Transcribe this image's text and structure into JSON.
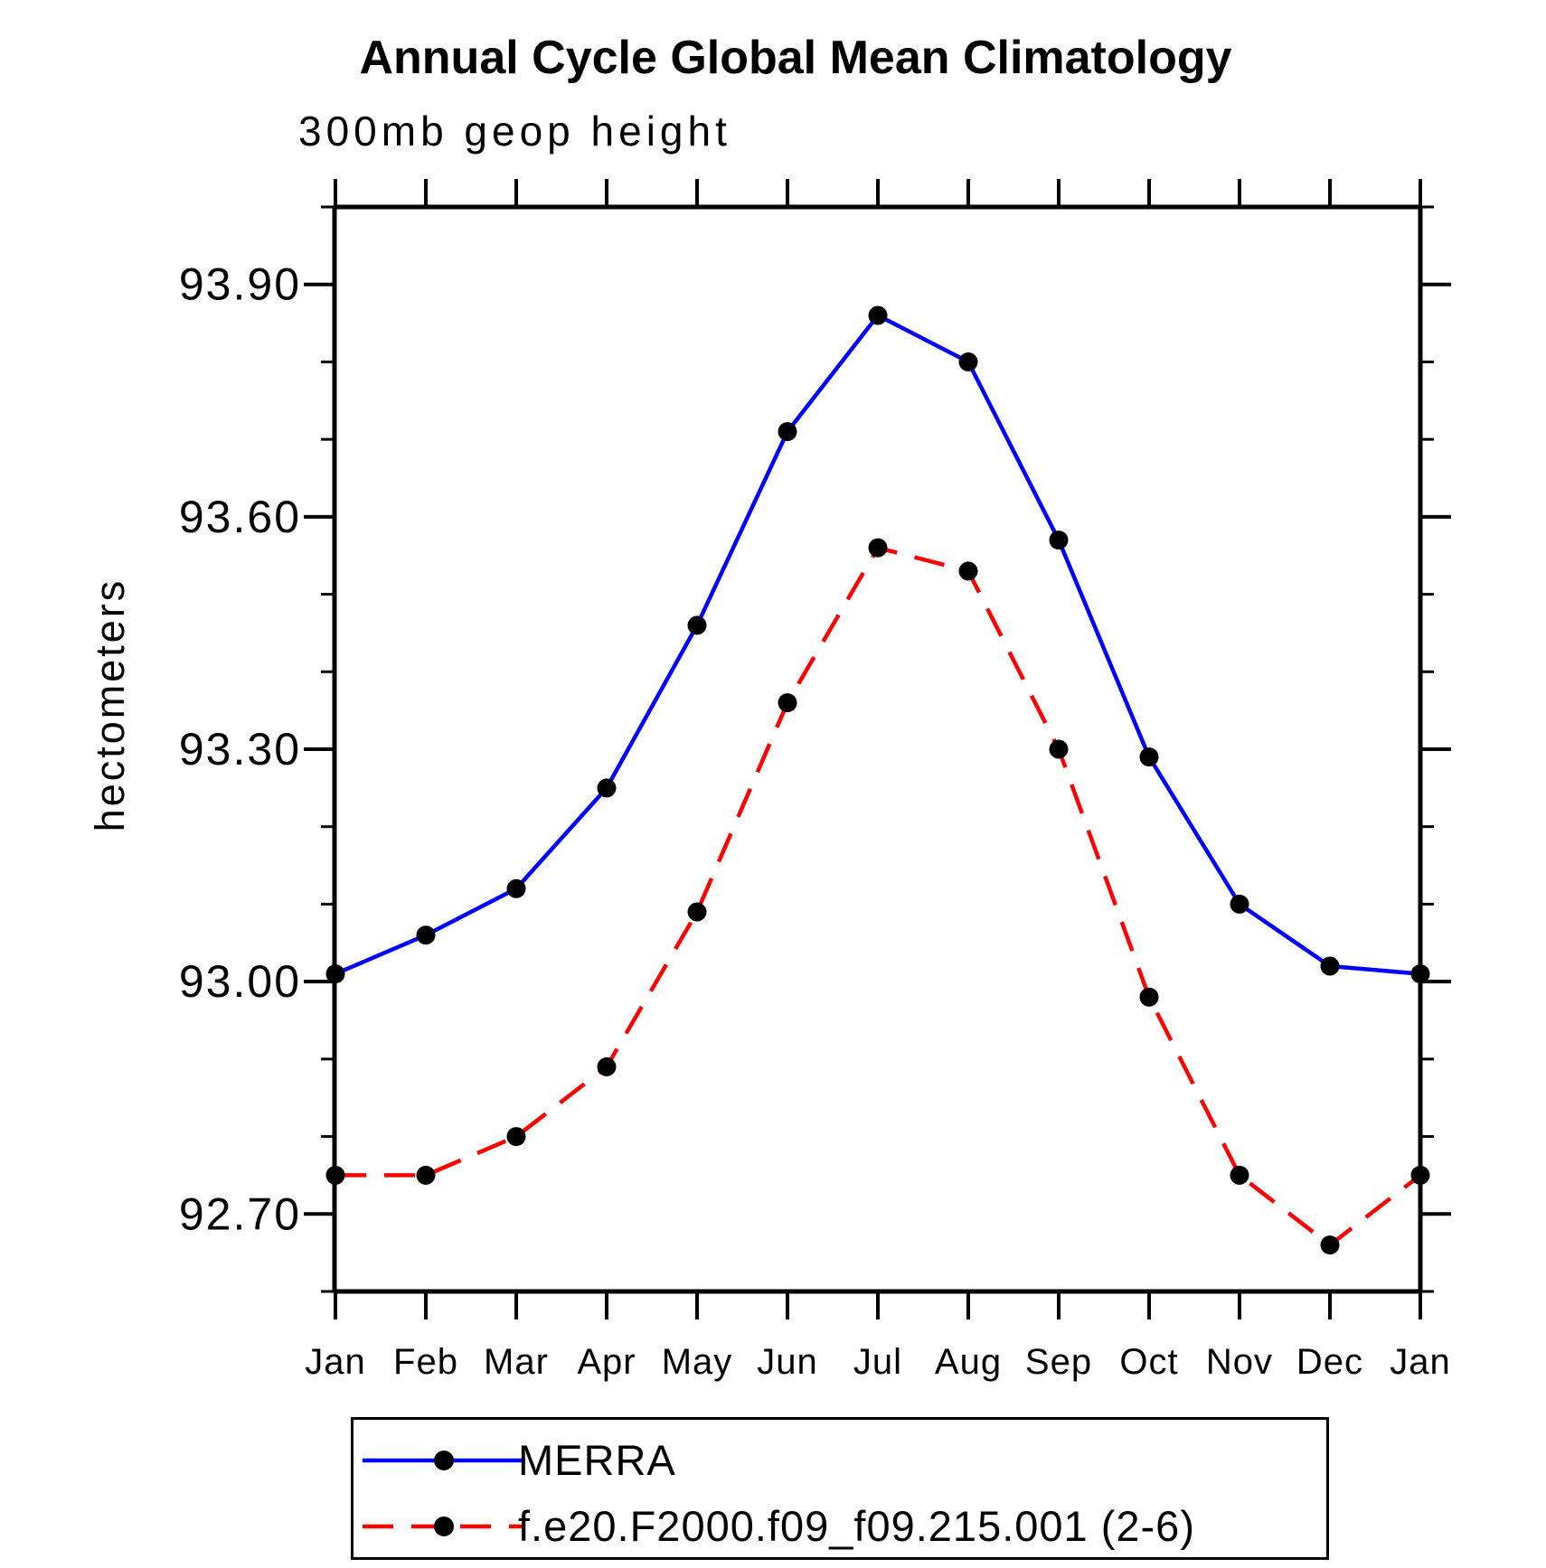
{
  "title": "Annual Cycle Global Mean Climatology",
  "subtitle": "300mb geop height",
  "ylabel": "hectometers",
  "colors": {
    "axis": "#000000",
    "marker": "#000000",
    "merra_line": "#0000ff",
    "model_line": "#ff0000"
  },
  "legend": {
    "entries": [
      {
        "label": "MERRA",
        "color": "#0000ff",
        "dash": "solid",
        "marker_color": "#000000"
      },
      {
        "label": "f.e20.F2000.f09_f09.215.001 (2-6)",
        "color": "#ff0000",
        "dash": "dashed",
        "marker_color": "#000000"
      }
    ]
  },
  "chart_data": {
    "type": "line",
    "title": "Annual Cycle Global Mean Climatology",
    "subtitle": "300mb geop height",
    "xlabel": "",
    "ylabel": "hectometers",
    "categories": [
      "Jan",
      "Feb",
      "Mar",
      "Apr",
      "May",
      "Jun",
      "Jul",
      "Aug",
      "Sep",
      "Oct",
      "Nov",
      "Dec",
      "Jan"
    ],
    "series": [
      {
        "name": "MERRA",
        "color": "#0000ff",
        "line_style": "solid",
        "marker": "filled-circle",
        "marker_color": "#000000",
        "values": [
          93.01,
          93.06,
          93.12,
          93.25,
          93.46,
          93.71,
          93.86,
          93.8,
          93.57,
          93.29,
          93.1,
          93.02,
          93.01
        ]
      },
      {
        "name": "f.e20.F2000.f09_f09.215.001 (2-6)",
        "color": "#ff0000",
        "line_style": "dashed",
        "marker": "filled-circle",
        "marker_color": "#000000",
        "values": [
          92.75,
          92.75,
          92.8,
          92.89,
          93.09,
          93.36,
          93.56,
          93.53,
          93.3,
          92.98,
          92.75,
          92.66,
          92.75
        ]
      }
    ],
    "ylim": [
      92.6,
      94.0
    ],
    "yticks_major": [
      92.7,
      93.0,
      93.3,
      93.6,
      93.9
    ],
    "ytick_labels": [
      "92.70",
      "93.00",
      "93.30",
      "93.60",
      "93.90"
    ],
    "ytick_minor_step": 0.1,
    "grid": false,
    "legend_position": "bottom-left-box"
  }
}
